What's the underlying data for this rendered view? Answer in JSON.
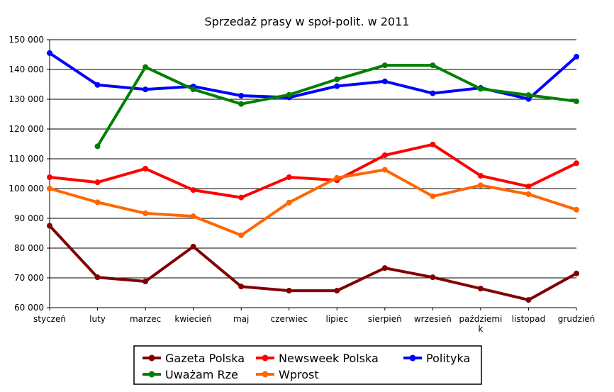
{
  "chart_data": {
    "type": "line",
    "title": "Sprzedaż prasy w społ-polit. w 2011",
    "xlabel": "",
    "ylabel": "",
    "categories": [
      "styczeń",
      "luty",
      "marzec",
      "kwiecień",
      "maj",
      "czerwiec",
      "lipiec",
      "sierpień",
      "wrzesień",
      "październik",
      "listopad",
      "grudzień"
    ],
    "category_display": [
      [
        "styczeń"
      ],
      [
        "luty"
      ],
      [
        "marzec"
      ],
      [
        "kwiecień"
      ],
      [
        "maj"
      ],
      [
        "czerwiec"
      ],
      [
        "lipiec"
      ],
      [
        "sierpień"
      ],
      [
        "wrzesień"
      ],
      [
        "paździemi",
        "k"
      ],
      [
        "listopad"
      ],
      [
        "grudzień"
      ]
    ],
    "ylim": [
      60000,
      150000
    ],
    "yticks": [
      60000,
      70000,
      80000,
      90000,
      100000,
      110000,
      120000,
      130000,
      140000,
      150000
    ],
    "ytick_labels": [
      "60 000",
      "70 000",
      "80 000",
      "90 000",
      "100 000",
      "110 000",
      "120 000",
      "130 000",
      "140 000",
      "150 000"
    ],
    "grid": true,
    "legend_position": "bottom",
    "series": [
      {
        "name": "Gazeta Polska",
        "color": "#800000",
        "values": [
          87500,
          70200,
          68800,
          80500,
          67100,
          65700,
          65700,
          73300,
          70200,
          66400,
          62600,
          71500
        ]
      },
      {
        "name": "Newsweek Polska",
        "color": "#ff0000",
        "values": [
          103800,
          102100,
          106700,
          99500,
          97000,
          103800,
          102800,
          111200,
          114800,
          104300,
          100700,
          108500
        ]
      },
      {
        "name": "Polityka",
        "color": "#0000ff",
        "values": [
          145500,
          134800,
          133300,
          134300,
          131200,
          130600,
          134400,
          136000,
          132000,
          133800,
          130100,
          144300
        ]
      },
      {
        "name": "Uważam Rze",
        "color": "#008000",
        "values": [
          null,
          114200,
          140800,
          133300,
          128400,
          131500,
          136700,
          141400,
          141400,
          133500,
          131400,
          129300
        ]
      },
      {
        "name": "Wprost",
        "color": "#ff6600",
        "values": [
          100000,
          95400,
          91700,
          90700,
          84300,
          95300,
          103600,
          106300,
          97400,
          101100,
          98100,
          92900
        ]
      }
    ]
  }
}
